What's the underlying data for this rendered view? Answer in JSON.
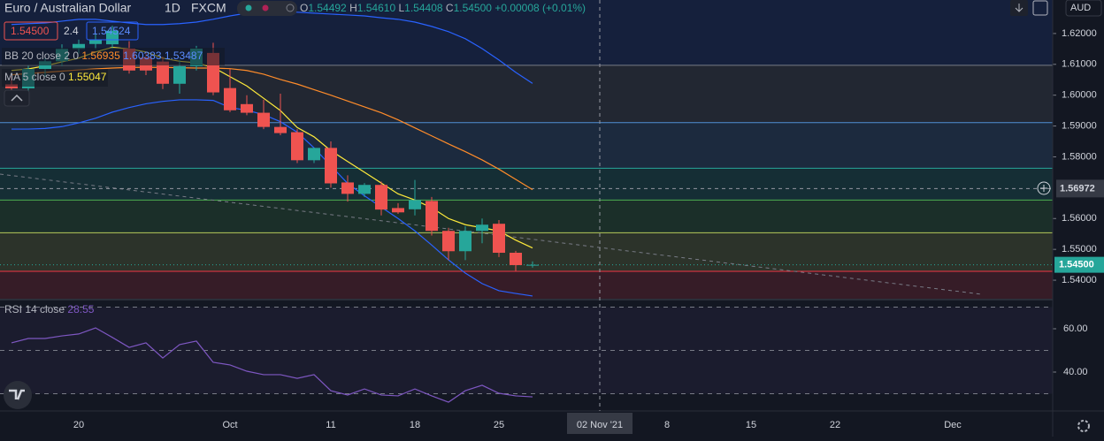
{
  "header": {
    "title": "Euro / Australian Dollar",
    "interval": "1D",
    "source": "FXCM",
    "o": "O",
    "open": "1.54492",
    "h": "H",
    "high": "1.54610",
    "l": "L",
    "low": "1.54408",
    "c": "C",
    "close": "1.54500",
    "change": "+0.00008 (+0.01%)",
    "currency": "AUD"
  },
  "quote": {
    "bid": "1.54500",
    "spread": "2.4",
    "ask": "1.54524"
  },
  "indicators": {
    "bb": "BB 20 close 2 0",
    "ma": "MA 5 close 0",
    "rsi": "RSI 14 close"
  },
  "chart_data": [
    {
      "type": "candlestick",
      "categories": [
        null,
        null,
        null,
        null,
        "20",
        null,
        null,
        null,
        null,
        null,
        null,
        null,
        null,
        "Oct",
        null,
        null,
        null,
        null,
        null,
        "11",
        null,
        null,
        null,
        null,
        "18",
        null,
        null,
        null,
        null,
        "25",
        null,
        null,
        null,
        null,
        null,
        "02 Nov '21",
        null,
        null,
        null,
        "8",
        null,
        null,
        null,
        null,
        "15",
        null,
        null,
        null,
        null,
        "22",
        null,
        null,
        null,
        null,
        null,
        null,
        "Dec",
        null,
        null,
        null,
        null,
        null
      ],
      "open": [
        1.6035,
        1.6022,
        1.6085,
        1.611,
        1.615,
        1.6166,
        1.6165,
        1.6151,
        1.6123,
        1.6109,
        1.6037,
        1.6094,
        1.6137,
        1.6023,
        1.5971,
        1.5943,
        1.5897,
        1.588,
        1.5789,
        1.5829,
        1.5717,
        1.568,
        1.5709,
        1.5634,
        1.563,
        1.5657,
        1.556,
        1.5494,
        1.556,
        1.5583,
        1.5489,
        1.54492,
        null,
        null,
        null,
        null,
        null,
        null,
        null,
        null,
        null,
        null,
        null,
        null,
        null,
        null,
        null,
        null,
        null,
        null,
        null,
        null,
        null,
        null,
        null,
        null,
        null,
        null,
        null,
        null,
        null,
        null
      ],
      "high": [
        1.6062,
        1.6095,
        1.612,
        1.6165,
        1.618,
        1.62,
        1.6225,
        1.6175,
        1.614,
        1.6125,
        1.6115,
        1.616,
        1.617,
        1.6085,
        1.6,
        1.5985,
        1.6005,
        1.589,
        1.583,
        1.585,
        1.574,
        1.5715,
        1.572,
        1.565,
        1.5725,
        1.567,
        1.557,
        1.5575,
        1.56,
        1.5595,
        1.5495,
        1.5461,
        null,
        null,
        null,
        null,
        null,
        null,
        null,
        null,
        null,
        null,
        null,
        null,
        null,
        null,
        null,
        null,
        null,
        null,
        null,
        null,
        null,
        null,
        null,
        null,
        null,
        null,
        null,
        null,
        null,
        null
      ],
      "low": [
        1.6012,
        1.6015,
        1.606,
        1.6095,
        1.6135,
        1.615,
        1.615,
        1.607,
        1.6065,
        1.602,
        1.6005,
        1.608,
        1.6,
        1.5945,
        1.5935,
        1.589,
        1.587,
        1.578,
        1.578,
        1.57,
        1.5655,
        1.567,
        1.561,
        1.5615,
        1.561,
        1.5545,
        1.5465,
        1.5465,
        1.552,
        1.5475,
        1.543,
        1.54408,
        null,
        null,
        null,
        null,
        null,
        null,
        null,
        null,
        null,
        null,
        null,
        null,
        null,
        null,
        null,
        null,
        null,
        null,
        null,
        null,
        null,
        null,
        null,
        null,
        null,
        null,
        null,
        null,
        null,
        null
      ],
      "close": [
        1.6022,
        1.6085,
        1.611,
        1.615,
        1.6166,
        1.618,
        1.6209,
        1.608,
        1.608,
        1.6037,
        1.6094,
        1.6151,
        1.6009,
        1.5951,
        1.5943,
        1.5897,
        1.5877,
        1.5789,
        1.5829,
        1.5714,
        1.568,
        1.5709,
        1.5629,
        1.562,
        1.566,
        1.556,
        1.5494,
        1.556,
        1.558,
        1.5489,
        1.5449,
        1.545,
        null,
        null,
        null,
        null,
        null,
        null,
        null,
        null,
        null,
        null,
        null,
        null,
        null,
        null,
        null,
        null,
        null,
        null,
        null,
        null,
        null,
        null,
        null,
        null,
        null,
        null,
        null,
        null,
        null,
        null
      ],
      "up_color": "#26a69a",
      "down_color": "#ef5350",
      "series": [
        {
          "color": "#ff8c2a",
          "values": [
            1.6066,
            1.607,
            1.6074,
            1.6078,
            1.6082,
            1.6085,
            1.6088,
            1.609,
            1.609,
            1.609,
            1.6089,
            1.6088,
            1.6088,
            1.6086,
            1.608,
            1.6068,
            1.6051,
            1.6036,
            1.6018,
            1.6,
            1.5981,
            1.5962,
            1.5943,
            1.592,
            1.5894,
            1.5868,
            1.5842,
            1.5817,
            1.579,
            1.576,
            1.5727,
            1.56935,
            null,
            null,
            null,
            null,
            null,
            null,
            null,
            null,
            null,
            null,
            null,
            null,
            null,
            null,
            null,
            null,
            null,
            null,
            null,
            null,
            null,
            null,
            null,
            null,
            null,
            null,
            null,
            null,
            null,
            null
          ]
        },
        {
          "color": "#2962ff",
          "values": [
            1.6229,
            1.6232,
            1.6234,
            1.624,
            1.6246,
            1.6246,
            1.624,
            1.6234,
            1.6229,
            1.6229,
            1.6232,
            1.6237,
            1.6246,
            1.6257,
            1.6266,
            1.6269,
            1.6269,
            1.6269,
            1.6266,
            1.6263,
            1.626,
            1.6257,
            1.6251,
            1.6246,
            1.6237,
            1.6223,
            1.6206,
            1.6183,
            1.6151,
            1.6114,
            1.6074,
            1.60383,
            null,
            null,
            null,
            null,
            null,
            null,
            null,
            null,
            null,
            null,
            null,
            null,
            null,
            null,
            null,
            null,
            null,
            null,
            null,
            null,
            null,
            null,
            null,
            null,
            null,
            null,
            null,
            null,
            null,
            null
          ]
        },
        {
          "color": "#2962ff",
          "values": [
            1.589,
            1.589,
            1.5892,
            1.5898,
            1.591,
            1.5925,
            1.5945,
            1.596,
            1.5972,
            1.598,
            1.5985,
            1.5985,
            1.5983,
            1.596,
            1.5951,
            1.5937,
            1.5914,
            1.588,
            1.5829,
            1.5771,
            1.5714,
            1.5674,
            1.5637,
            1.56,
            1.556,
            1.5514,
            1.5466,
            1.5423,
            1.5389,
            1.5366,
            1.5357,
            1.53487,
            null,
            null,
            null,
            null,
            null,
            null,
            null,
            null,
            null,
            null,
            null,
            null,
            null,
            null,
            null,
            null,
            null,
            null,
            null,
            null,
            null,
            null,
            null,
            null,
            null,
            null,
            null,
            null,
            null,
            null
          ]
        },
        {
          "color": "#ffeb3b",
          "values": [
            1.608,
            1.6085,
            1.6095,
            1.6108,
            1.612,
            1.614,
            1.6155,
            1.615,
            1.614,
            1.612,
            1.611,
            1.6105,
            1.609,
            1.606,
            1.603,
            1.599,
            1.595,
            1.5895,
            1.5865,
            1.582,
            1.5785,
            1.575,
            1.5715,
            1.568,
            1.566,
            1.5635,
            1.56,
            1.558,
            1.557,
            1.556,
            1.553,
            1.55047,
            null,
            null,
            null,
            null,
            null,
            null,
            null,
            null,
            null,
            null,
            null,
            null,
            null,
            null,
            null,
            null,
            null,
            null,
            null,
            null,
            null,
            null,
            null,
            null,
            null,
            null,
            null,
            null,
            null,
            null
          ]
        }
      ],
      "levels": [
        {
          "value": 1.6097,
          "color": "#787b86"
        },
        {
          "value": 1.5911,
          "color": "#4f8fd6"
        },
        {
          "value": 1.5763,
          "color": "#26a69a"
        },
        {
          "value": 1.566,
          "color": "#4caf50"
        },
        {
          "value": 1.5554,
          "color": "#b5c95a"
        },
        {
          "value": 1.5429,
          "color": "#f23645"
        }
      ],
      "ylim": [
        1.534,
        1.63086
      ],
      "yticks": [
        {
          "value": 1.62,
          "label": "1.62000"
        },
        {
          "value": 1.61,
          "label": "1.61000"
        },
        {
          "value": 1.6,
          "label": "1.60000"
        },
        {
          "value": 1.59,
          "label": "1.59000"
        },
        {
          "value": 1.58,
          "label": "1.58000"
        },
        {
          "value": 1.56,
          "label": "1.56000"
        },
        {
          "value": 1.55,
          "label": "1.55000"
        },
        {
          "value": 1.54,
          "label": "1.54000"
        }
      ],
      "crosshair": {
        "value": 1.56972,
        "label": "1.56972"
      },
      "last_price": {
        "value": 1.545,
        "label": "1.54500"
      }
    },
    {
      "type": "line",
      "series": [
        {
          "color": "#7e57c2",
          "values": [
            53.5,
            55.5,
            55.5,
            56.7,
            57.6,
            60.4,
            56.0,
            51.4,
            53.5,
            46.5,
            52.7,
            54.3,
            44.5,
            43.3,
            40.4,
            38.8,
            38.8,
            37.1,
            38.8,
            31.4,
            29.4,
            32.2,
            29.4,
            29.0,
            32.2,
            29.0,
            26.1,
            31.4,
            33.9,
            30.2,
            29.0,
            28.55,
            null,
            null,
            null,
            null,
            null,
            null,
            null,
            null,
            null,
            null,
            null,
            null,
            null,
            null,
            null,
            null,
            null,
            null,
            null,
            null,
            null,
            null,
            null,
            null,
            null,
            null,
            null,
            null,
            null,
            null
          ]
        }
      ],
      "levels": [
        70,
        50,
        30
      ],
      "ylim": [
        22.04,
        73.06
      ],
      "yticks": [
        {
          "value": 60,
          "label": "60.00"
        },
        {
          "value": 40,
          "label": "40.00"
        }
      ]
    }
  ]
}
